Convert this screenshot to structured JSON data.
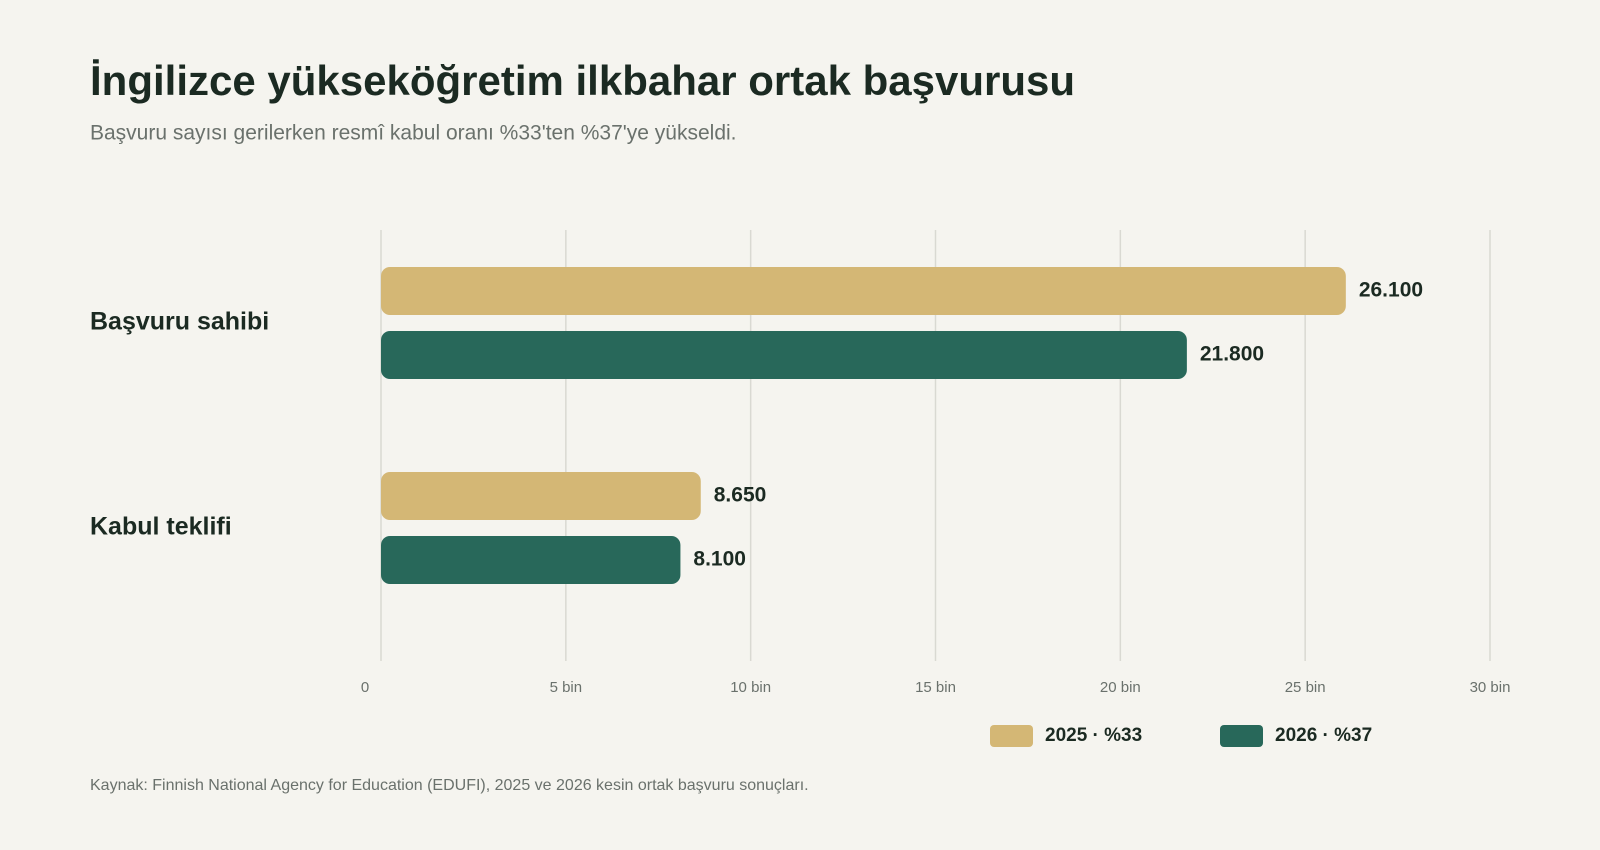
{
  "chart_data": {
    "type": "hbar",
    "title": "İngilizce yükseköğretim ilkbahar ortak başvurusu",
    "subtitle": "Başvuru sayısı gerilerken resmî kabul oranı %33'ten %37'ye yükseldi.",
    "source": "Kaynak: Finnish National Agency for Education (EDUFI), 2025 ve 2026 kesin ortak başvuru sonuçları.",
    "categories": [
      "Başvuru sahibi",
      "Kabul teklifi"
    ],
    "series": [
      {
        "name": "2025 · %33",
        "color": "#d4b775",
        "values": [
          26100,
          8650
        ],
        "value_labels": [
          "26.100",
          "8.650"
        ]
      },
      {
        "name": "2026 · %37",
        "color": "#28685a",
        "values": [
          21800,
          8100
        ],
        "value_labels": [
          "21.800",
          "8.100"
        ]
      }
    ],
    "xlim": [
      0,
      30000
    ],
    "xticks": [
      0,
      {
        "value": 5000,
        "label": "5 bin"
      },
      {
        "value": 10000,
        "label": "10 bin"
      },
      {
        "value": 15000,
        "label": "15 bin"
      },
      {
        "value": 20000,
        "label": "20 bin"
      },
      {
        "value": 25000,
        "label": "25 bin"
      },
      {
        "value": 30000,
        "label": "30 bin"
      }
    ],
    "grid": true,
    "legend": "bottom-right"
  }
}
